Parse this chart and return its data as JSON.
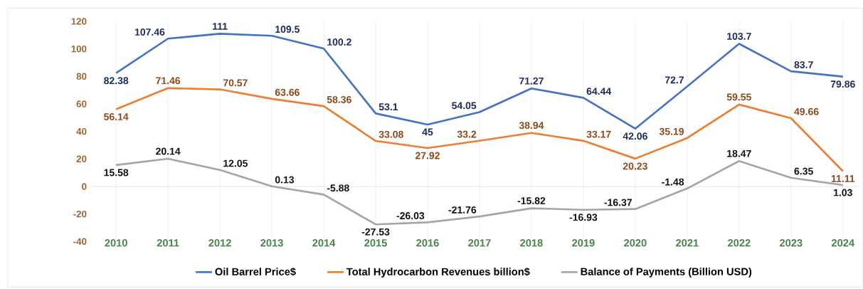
{
  "chart_data": {
    "type": "line",
    "categories": [
      "2010",
      "2011",
      "2012",
      "2013",
      "2014",
      "2015",
      "2016",
      "2017",
      "2018",
      "2019",
      "2020",
      "2021",
      "2022",
      "2023",
      "2024"
    ],
    "series": [
      {
        "name": "Oil Barrel Price$",
        "color": "#4472c4",
        "values": [
          82.38,
          107.46,
          111,
          109.5,
          100.2,
          53.1,
          45,
          54.05,
          71.27,
          64.44,
          42.06,
          72.7,
          103.7,
          83.7,
          79.86
        ]
      },
      {
        "name": "Total Hydrocarbon Revenues billion$",
        "color": "#ed7d31",
        "values": [
          56.14,
          71.46,
          70.57,
          63.66,
          58.36,
          33.08,
          27.92,
          33.2,
          38.94,
          33.17,
          20.23,
          35.19,
          59.55,
          49.66,
          11.11
        ]
      },
      {
        "name": "Balance of Payments (Billion USD)",
        "color": "#a5a5a5",
        "values": [
          15.58,
          20.14,
          12.05,
          0.13,
          -5.88,
          -27.53,
          -26.03,
          -21.76,
          -15.82,
          -16.93,
          -16.37,
          -1.48,
          18.47,
          6.35,
          1.03
        ]
      }
    ],
    "ylim": [
      -40,
      120
    ],
    "yticks": [
      -40,
      -20,
      0,
      20,
      40,
      60,
      80,
      100,
      120
    ],
    "grid": "x",
    "legend": "bottom",
    "data_labels": true,
    "marker": "none"
  }
}
